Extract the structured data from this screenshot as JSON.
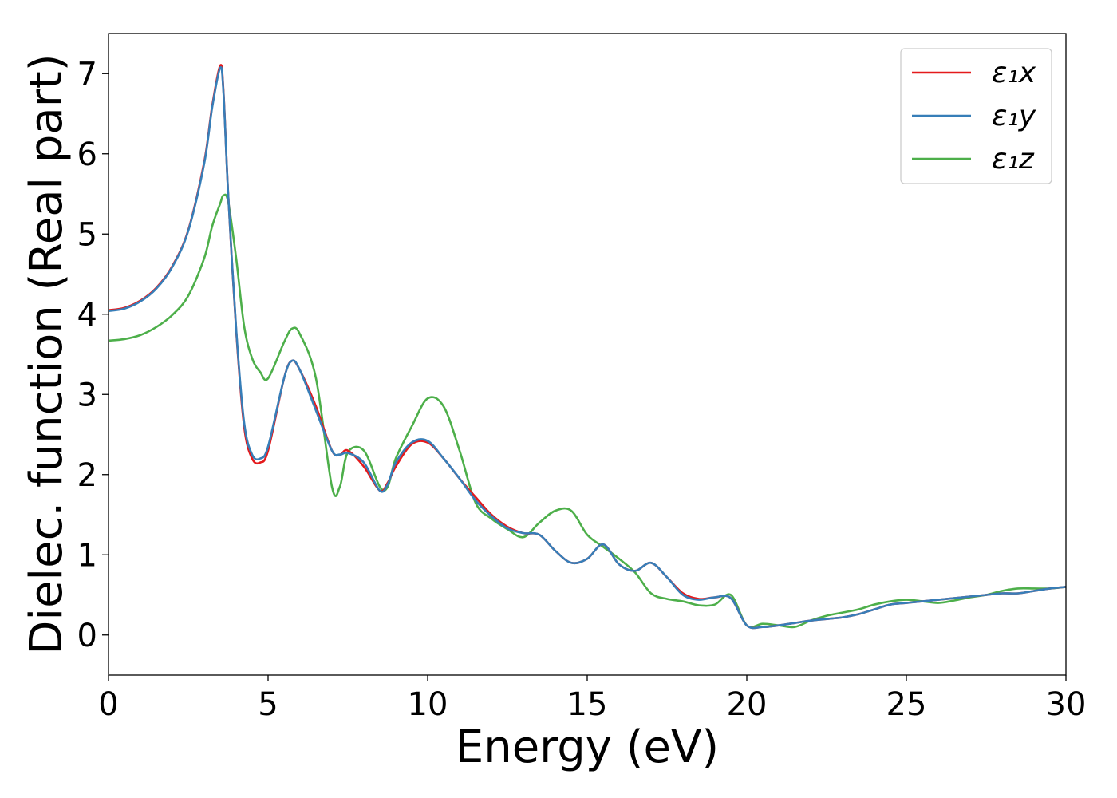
{
  "chart_data": {
    "type": "line",
    "xlabel": "Energy (eV)",
    "ylabel": "Dielec. function (Real part)",
    "xlim": [
      0,
      30
    ],
    "ylim": [
      -0.5,
      7.5
    ],
    "xticks": [
      "0",
      "5",
      "10",
      "15",
      "20",
      "25",
      "30"
    ],
    "yticks": [
      "0",
      "1",
      "2",
      "3",
      "4",
      "5",
      "6",
      "7"
    ],
    "grid": false,
    "legend_position": "top-right",
    "x": [
      0,
      0.5,
      1,
      1.5,
      2,
      2.5,
      3,
      3.25,
      3.5,
      3.6,
      3.75,
      4,
      4.25,
      4.5,
      4.75,
      5,
      5.5,
      5.75,
      6,
      6.5,
      7,
      7.25,
      7.5,
      8,
      8.5,
      8.75,
      9,
      9.5,
      10,
      10.5,
      11,
      11.5,
      12,
      12.5,
      13,
      13.5,
      14,
      14.5,
      15,
      15.5,
      16,
      16.5,
      17,
      17.5,
      18,
      18.5,
      19,
      19.5,
      20,
      20.5,
      21,
      21.5,
      22,
      22.5,
      23,
      23.5,
      24,
      24.5,
      25,
      25.5,
      26,
      26.5,
      27,
      27.5,
      28,
      28.5,
      29,
      29.5,
      30
    ],
    "series": [
      {
        "name": "ε₁x",
        "color": "#e41a1c",
        "values": [
          4.05,
          4.08,
          4.17,
          4.33,
          4.6,
          5.05,
          5.9,
          6.6,
          7.1,
          6.8,
          5.5,
          3.8,
          2.6,
          2.2,
          2.15,
          2.3,
          3.2,
          3.42,
          3.3,
          2.85,
          2.3,
          2.25,
          2.3,
          2.1,
          1.8,
          1.9,
          2.1,
          2.38,
          2.4,
          2.2,
          1.95,
          1.72,
          1.5,
          1.35,
          1.27,
          1.25,
          1.05,
          0.9,
          0.95,
          1.13,
          0.88,
          0.8,
          0.9,
          0.72,
          0.52,
          0.45,
          0.47,
          0.46,
          0.12,
          0.1,
          0.12,
          0.15,
          0.18,
          0.2,
          0.22,
          0.26,
          0.32,
          0.38,
          0.4,
          0.42,
          0.44,
          0.46,
          0.48,
          0.5,
          0.52,
          0.52,
          0.55,
          0.58,
          0.6
        ]
      },
      {
        "name": "ε₁y",
        "color": "#377eb8",
        "values": [
          4.04,
          4.07,
          4.16,
          4.32,
          4.59,
          5.04,
          5.88,
          6.58,
          7.07,
          6.78,
          5.5,
          3.82,
          2.65,
          2.25,
          2.2,
          2.35,
          3.2,
          3.42,
          3.3,
          2.8,
          2.3,
          2.25,
          2.27,
          2.15,
          1.8,
          1.88,
          2.15,
          2.4,
          2.42,
          2.2,
          1.95,
          1.68,
          1.48,
          1.33,
          1.27,
          1.25,
          1.05,
          0.9,
          0.95,
          1.13,
          0.88,
          0.8,
          0.9,
          0.72,
          0.5,
          0.44,
          0.47,
          0.46,
          0.12,
          0.1,
          0.12,
          0.15,
          0.18,
          0.2,
          0.22,
          0.26,
          0.32,
          0.38,
          0.4,
          0.42,
          0.44,
          0.46,
          0.48,
          0.5,
          0.52,
          0.52,
          0.55,
          0.58,
          0.6
        ]
      },
      {
        "name": "ε₁z",
        "color": "#4daf4a",
        "values": [
          3.67,
          3.69,
          3.74,
          3.84,
          3.99,
          4.23,
          4.7,
          5.1,
          5.38,
          5.48,
          5.4,
          4.7,
          3.85,
          3.45,
          3.28,
          3.2,
          3.65,
          3.82,
          3.75,
          3.2,
          1.85,
          1.85,
          2.28,
          2.3,
          1.85,
          1.85,
          2.2,
          2.6,
          2.95,
          2.85,
          2.3,
          1.65,
          1.45,
          1.32,
          1.22,
          1.4,
          1.55,
          1.55,
          1.25,
          1.1,
          0.95,
          0.78,
          0.52,
          0.45,
          0.42,
          0.37,
          0.38,
          0.5,
          0.12,
          0.14,
          0.12,
          0.1,
          0.18,
          0.24,
          0.28,
          0.32,
          0.38,
          0.42,
          0.44,
          0.42,
          0.4,
          0.43,
          0.47,
          0.5,
          0.55,
          0.58,
          0.58,
          0.58,
          0.6
        ]
      }
    ]
  }
}
